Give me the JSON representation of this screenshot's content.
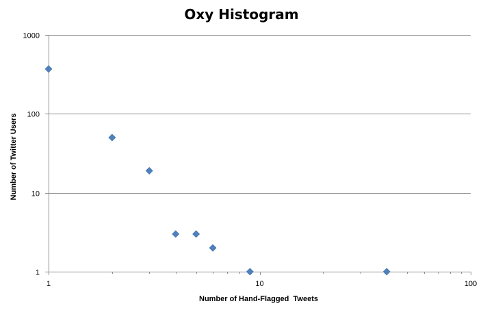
{
  "chart_data": {
    "type": "scatter",
    "title": "Oxy Histogram",
    "xlabel": "Number of Hand-Flagged  Tweets",
    "ylabel": "Number of Twitter Users",
    "x_scale": "log",
    "y_scale": "log",
    "xlim": [
      1,
      100
    ],
    "ylim": [
      1,
      1000
    ],
    "x_ticks": [
      "1",
      "10",
      "100"
    ],
    "y_ticks": [
      "1",
      "10",
      "100",
      "1000"
    ],
    "grid": "horizontal major gridlines",
    "legend": "none",
    "marker": "diamond",
    "marker_color": "#4f81bd",
    "points": [
      {
        "x": 1,
        "y": 370
      },
      {
        "x": 2,
        "y": 50
      },
      {
        "x": 3,
        "y": 19
      },
      {
        "x": 4,
        "y": 3
      },
      {
        "x": 5,
        "y": 3
      },
      {
        "x": 6,
        "y": 2
      },
      {
        "x": 9,
        "y": 1
      },
      {
        "x": 40,
        "y": 1
      }
    ]
  }
}
